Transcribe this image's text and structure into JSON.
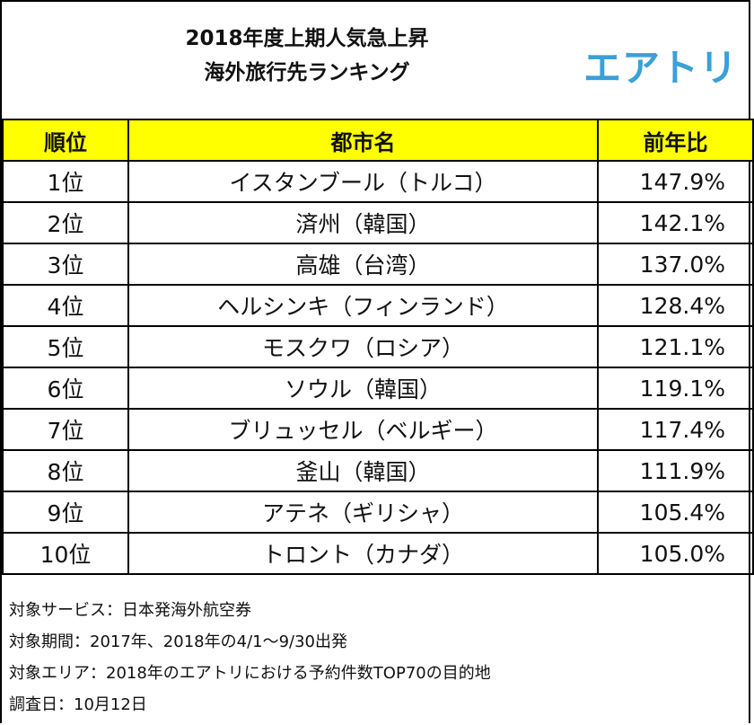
{
  "header": {
    "title": [
      "2018年度上期人気急上昇",
      "海外旅行先ランキング"
    ],
    "logo": "エアトリ"
  },
  "table": {
    "columns": [
      "順位",
      "都市名",
      "前年比"
    ],
    "rows": [
      [
        "1位",
        "イスタンブール（トルコ）",
        "147.9%"
      ],
      [
        "2位",
        "済州（韓国）",
        "142.1%"
      ],
      [
        "3位",
        "高雄（台湾）",
        "137.0%"
      ],
      [
        "4位",
        "ヘルシンキ（フィンランド）",
        "128.4%"
      ],
      [
        "5位",
        "モスクワ（ロシア）",
        "121.1%"
      ],
      [
        "6位",
        "ソウル（韓国）",
        "119.1%"
      ],
      [
        "7位",
        "ブリュッセル（ベルギー）",
        "117.4%"
      ],
      [
        "8位",
        "釜山（韓国）",
        "111.9%"
      ],
      [
        "9位",
        "アテネ（ギリシャ）",
        "105.4%"
      ],
      [
        "10位",
        "トロント（カナダ）",
        "105.0%"
      ]
    ]
  },
  "notes": [
    "対象サービス：日本発海外航空券",
    "対象期間：2017年、2018年の4/1～9/30出発",
    "対象エリア：2018年のエアトリにおける予約件数TOP70の目的地",
    "調査日：10月12日"
  ]
}
